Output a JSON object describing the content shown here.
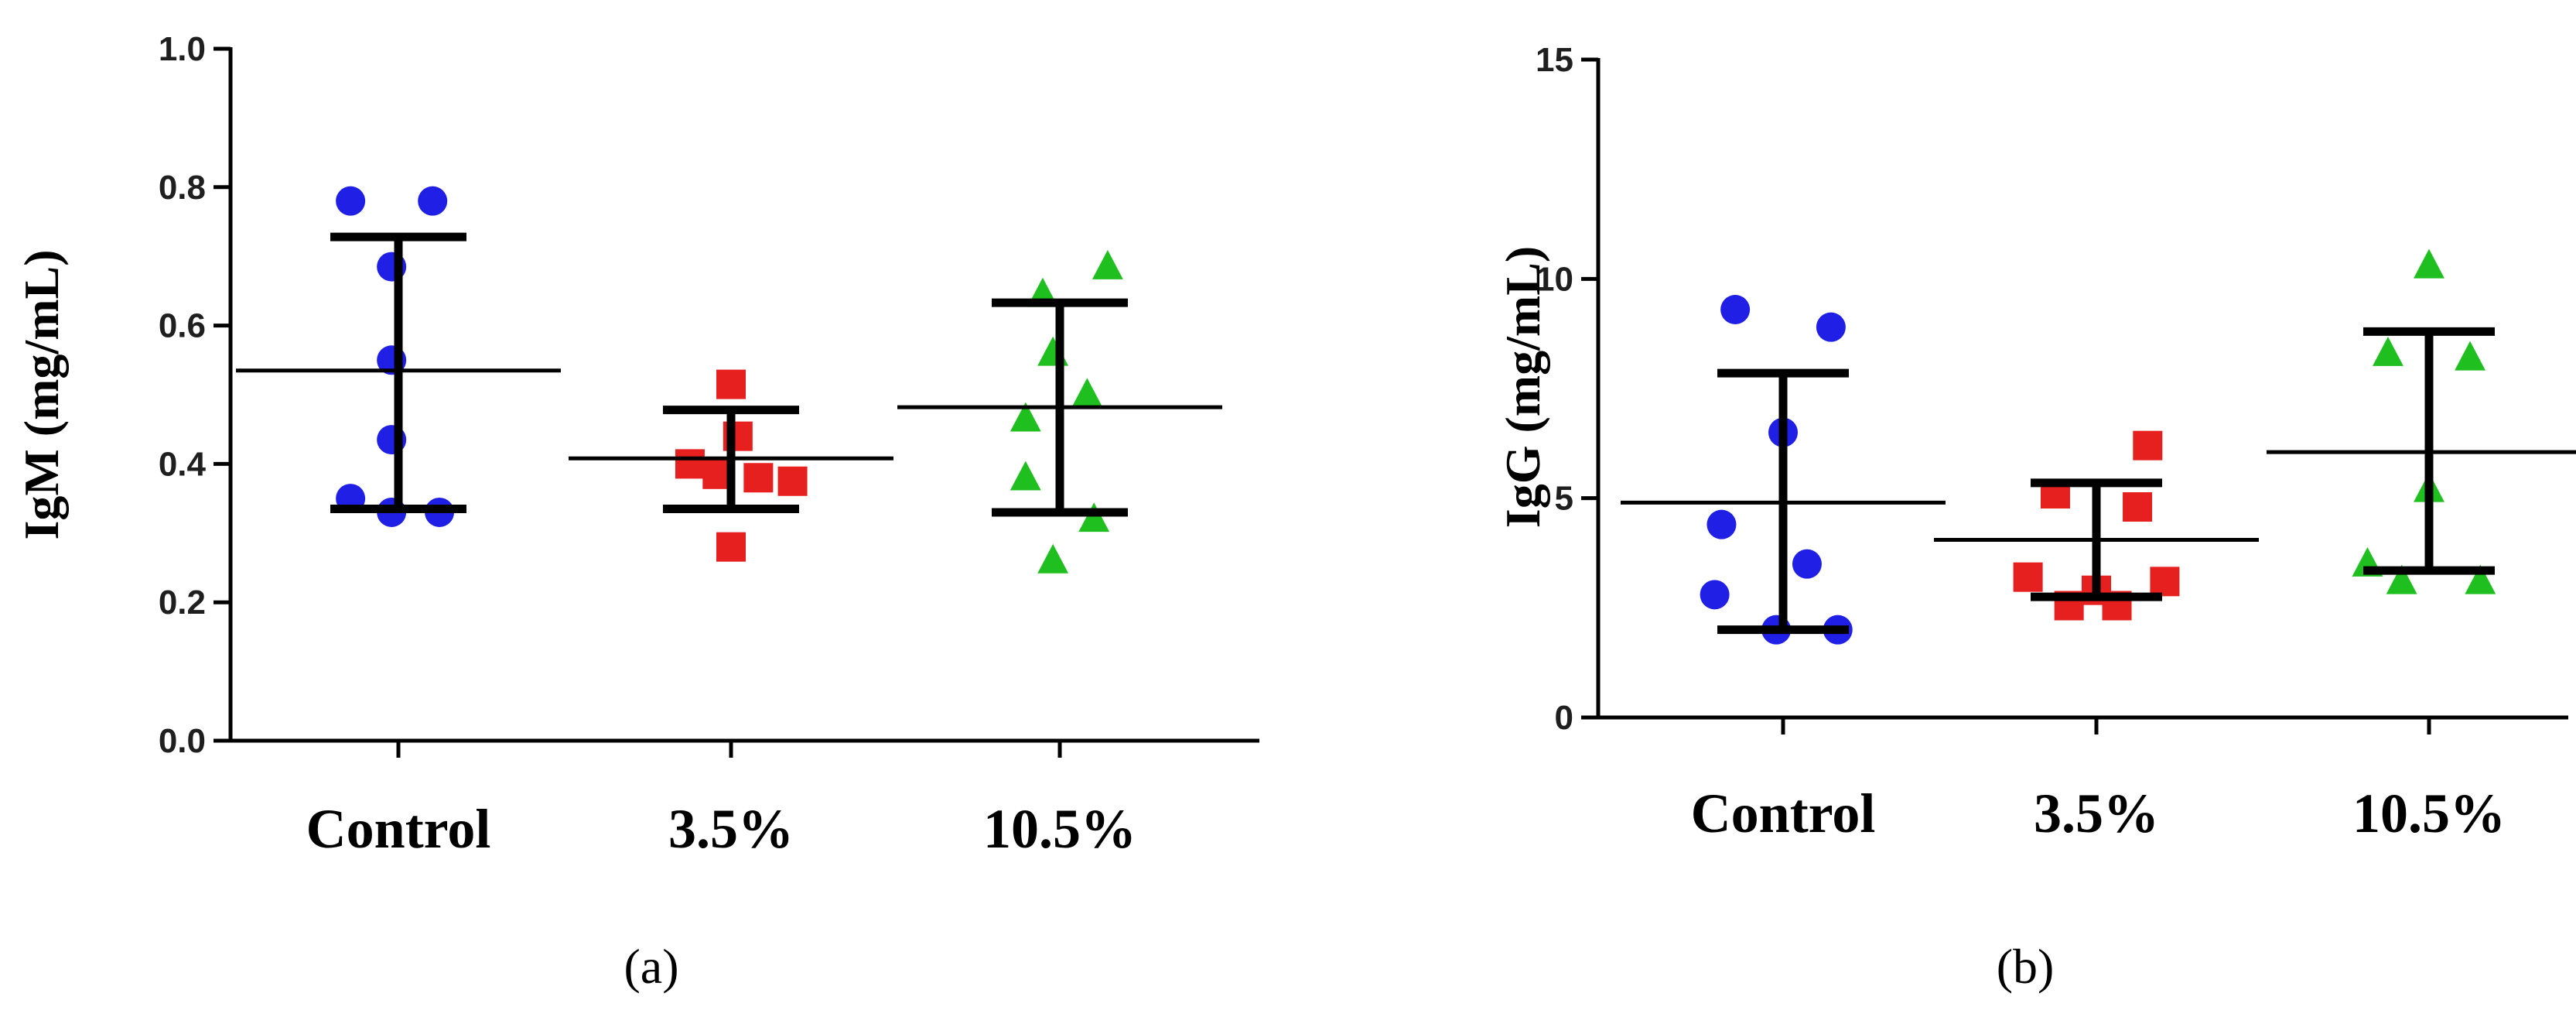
{
  "chart_data": [
    {
      "type": "scatter",
      "panel_label": "(a)",
      "ylabel": "IgM (mg/mL)",
      "ylim": [
        0,
        1.0
      ],
      "yticks": [
        0.0,
        0.2,
        0.4,
        0.6,
        0.8,
        1.0
      ],
      "ytick_labels": [
        "0.0",
        "0.2",
        "0.4",
        "0.6",
        "0.8",
        "1.0"
      ],
      "categories": [
        "Control",
        "3.5%",
        "10.5%"
      ],
      "groups": [
        {
          "name": "Control",
          "marker": "circle",
          "color": "#1f1fe6",
          "points": [
            [
              -0.14,
              0.78
            ],
            [
              0.1,
              0.78
            ],
            [
              -0.02,
              0.685
            ],
            [
              -0.02,
              0.55
            ],
            [
              -0.02,
              0.435
            ],
            [
              -0.14,
              0.35
            ],
            [
              -0.02,
              0.33
            ],
            [
              0.12,
              0.33
            ]
          ],
          "mean": 0.535,
          "upper": 0.728,
          "lower": 0.335
        },
        {
          "name": "3.5%",
          "marker": "square",
          "color": "#e61f1f",
          "points": [
            [
              0.0,
              0.515
            ],
            [
              -0.12,
              0.4
            ],
            [
              -0.04,
              0.385
            ],
            [
              0.08,
              0.38
            ],
            [
              0.18,
              0.375
            ],
            [
              0.0,
              0.28
            ],
            [
              0.02,
              0.44
            ]
          ],
          "mean": 0.408,
          "upper": 0.478,
          "lower": 0.335
        },
        {
          "name": "10.5%",
          "marker": "triangle",
          "color": "#1fbf1f",
          "points": [
            [
              0.14,
              0.685
            ],
            [
              -0.05,
              0.645
            ],
            [
              -0.02,
              0.56
            ],
            [
              0.08,
              0.5
            ],
            [
              -0.1,
              0.465
            ],
            [
              -0.1,
              0.38
            ],
            [
              0.1,
              0.32
            ],
            [
              -0.02,
              0.26
            ]
          ],
          "mean": 0.482,
          "upper": 0.633,
          "lower": 0.33
        }
      ]
    },
    {
      "type": "scatter",
      "panel_label": "(b)",
      "ylabel": "IgG (mg/mL)",
      "ylim": [
        0,
        15
      ],
      "yticks": [
        0,
        5,
        10,
        15
      ],
      "ytick_labels": [
        "0",
        "5",
        "10",
        "15"
      ],
      "categories": [
        "Control",
        "3.5%",
        "10.5%"
      ],
      "groups": [
        {
          "name": "Control",
          "marker": "circle",
          "color": "#1f1fe6",
          "points": [
            [
              -0.14,
              9.3
            ],
            [
              0.14,
              8.9
            ],
            [
              0.0,
              6.5
            ],
            [
              -0.18,
              4.4
            ],
            [
              0.07,
              3.5
            ],
            [
              -0.2,
              2.8
            ],
            [
              -0.02,
              2.0
            ],
            [
              0.16,
              2.0
            ]
          ],
          "mean": 4.9,
          "upper": 7.85,
          "lower": 2.0
        },
        {
          "name": "3.5%",
          "marker": "square",
          "color": "#e61f1f",
          "points": [
            [
              0.15,
              6.2
            ],
            [
              -0.12,
              5.1
            ],
            [
              0.12,
              4.8
            ],
            [
              -0.2,
              3.2
            ],
            [
              0.2,
              3.1
            ],
            [
              0.0,
              2.9
            ],
            [
              -0.08,
              2.55
            ],
            [
              0.06,
              2.55
            ]
          ],
          "mean": 4.05,
          "upper": 5.35,
          "lower": 2.75
        },
        {
          "name": "10.5%",
          "marker": "triangle",
          "color": "#1fbf1f",
          "points": [
            [
              0.0,
              10.3
            ],
            [
              -0.12,
              8.3
            ],
            [
              0.12,
              8.2
            ],
            [
              0.0,
              5.2
            ],
            [
              -0.18,
              3.5
            ],
            [
              -0.08,
              3.1
            ],
            [
              0.15,
              3.1
            ]
          ],
          "mean": 6.05,
          "upper": 8.8,
          "lower": 3.35
        }
      ]
    }
  ]
}
